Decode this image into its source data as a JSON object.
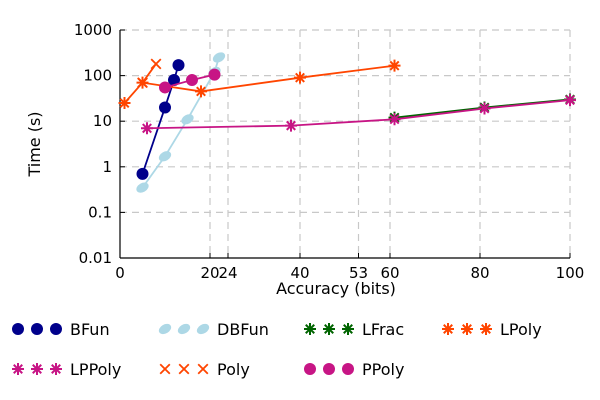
{
  "chart_data": {
    "type": "scatter",
    "xlabel": "Accuracy (bits)",
    "ylabel": "Time (s)",
    "xlim": [
      0,
      100
    ],
    "ylim": [
      0.01,
      1000
    ],
    "yscale": "log",
    "grid": true,
    "legend_placement": "bottom",
    "x_ticks": [
      0,
      20,
      24,
      40,
      53,
      60,
      80,
      100
    ],
    "x_tick_labels": [
      "0",
      "20",
      "24",
      "40",
      "53",
      "60",
      "80",
      "100"
    ],
    "y_ticks": [
      0.01,
      0.1,
      1,
      10,
      100,
      1000
    ],
    "y_tick_labels": [
      "0.01",
      "0.1",
      "1",
      "10",
      "100",
      "1000"
    ],
    "series": [
      {
        "name": "BFun",
        "marker": "circle",
        "color": "#00008b",
        "points": [
          [
            5,
            0.7
          ],
          [
            10,
            20
          ],
          [
            12,
            80
          ],
          [
            13,
            170
          ]
        ]
      },
      {
        "name": "DBFun",
        "marker": "ellipse",
        "color": "#add8e6",
        "points": [
          [
            5,
            0.35
          ],
          [
            10,
            1.7
          ],
          [
            15,
            11
          ],
          [
            21,
            120
          ],
          [
            22,
            250
          ]
        ]
      },
      {
        "name": "LFrac",
        "marker": "star",
        "color": "#006400",
        "points": [
          [
            61,
            12
          ],
          [
            81,
            20
          ],
          [
            100,
            30
          ]
        ]
      },
      {
        "name": "LPoly",
        "marker": "asterisk",
        "color": "#ff4500",
        "points": [
          [
            1,
            25
          ],
          [
            5,
            70
          ],
          [
            18,
            45
          ],
          [
            40,
            90
          ],
          [
            61,
            165
          ]
        ]
      },
      {
        "name": "LPPoly",
        "marker": "star",
        "color": "#c71585",
        "points": [
          [
            6,
            7
          ],
          [
            38,
            8
          ],
          [
            61,
            11
          ],
          [
            81,
            19
          ],
          [
            100,
            29
          ]
        ]
      },
      {
        "name": "Poly",
        "marker": "x",
        "color": "#ff4500",
        "points": [
          [
            5,
            70
          ],
          [
            8,
            180
          ]
        ]
      },
      {
        "name": "PPoly",
        "marker": "circle",
        "color": "#c71585",
        "points": [
          [
            10,
            55
          ],
          [
            16,
            80
          ],
          [
            21,
            105
          ]
        ]
      }
    ]
  }
}
